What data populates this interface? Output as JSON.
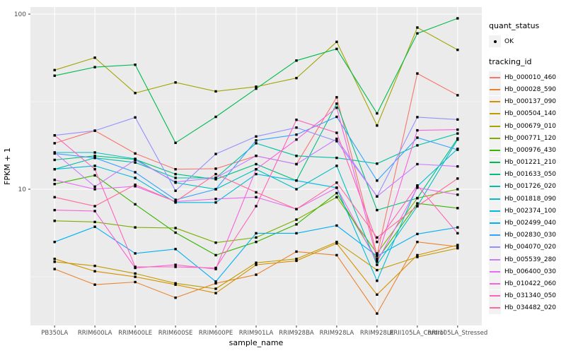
{
  "figure": {
    "background": "#FFFFFF",
    "panel_bg": "#EBEBEB",
    "grid_color": "#FFFFFF",
    "tick_label_color": "#4D4D4D",
    "axis_title_color": "#000000",
    "point_color": "#000000",
    "legend_key_bg": "#F2F2F2"
  },
  "chart_data": {
    "type": "line",
    "title": "",
    "xlabel": "sample_name",
    "ylabel": "FPKM + 1",
    "y_scale": "log10",
    "y_ticks": [
      10,
      100
    ],
    "y_minor_ticks": [
      3.162,
      31.62
    ],
    "ylim": [
      1.67,
      110
    ],
    "grid": true,
    "legend_position": "right",
    "marker": "black-point",
    "categories": [
      "PB350LA",
      "RRIM600LA",
      "RRIM600LE",
      "RRIM600SE",
      "RRIM600PE",
      "RRIM901LA",
      "RRIM928BA",
      "RRIM928LA",
      "RRIM928LE",
      "RRII105LA_Control",
      "RRII105LA_Stressed"
    ],
    "series": [
      {
        "name": "Hb_000010_460",
        "color": "#F8766D",
        "values": [
          18.3,
          21.6,
          16.0,
          13.0,
          13.1,
          15.5,
          13.9,
          33.5,
          4.2,
          45.8,
          34.4
        ]
      },
      {
        "name": "Hb_000028_590",
        "color": "#EA8331",
        "values": [
          3.5,
          2.85,
          2.95,
          2.4,
          2.9,
          3.25,
          4.4,
          4.2,
          1.95,
          5.0,
          4.7
        ]
      },
      {
        "name": "Hb_000137_090",
        "color": "#D89000",
        "values": [
          4.0,
          3.4,
          3.16,
          2.85,
          2.55,
          3.7,
          3.9,
          4.9,
          2.5,
          4.2,
          4.8
        ]
      },
      {
        "name": "Hb_000504_140",
        "color": "#C09B00",
        "values": [
          3.85,
          3.65,
          3.3,
          2.9,
          2.7,
          3.8,
          4.0,
          5.0,
          3.45,
          4.1,
          4.6
        ]
      },
      {
        "name": "Hb_000679_010",
        "color": "#A3A500",
        "values": [
          47.9,
          56.4,
          35.4,
          40.7,
          36.2,
          38.5,
          43.1,
          69.4,
          23.1,
          83.8,
          62.5
        ]
      },
      {
        "name": "Hb_000771_120",
        "color": "#7CAE00",
        "values": [
          6.6,
          6.5,
          6.05,
          6.0,
          4.95,
          5.3,
          6.7,
          9.0,
          4.3,
          8.9,
          10.0
        ]
      },
      {
        "name": "Hb_000976_430",
        "color": "#39B600",
        "values": [
          10.7,
          12.0,
          8.2,
          5.65,
          4.2,
          5.0,
          6.3,
          9.5,
          3.95,
          8.3,
          7.8
        ]
      },
      {
        "name": "Hb_001221_210",
        "color": "#00BB4E",
        "values": [
          44.5,
          49.8,
          51.4,
          18.4,
          25.9,
          37.5,
          54.3,
          63.3,
          27.1,
          77.6,
          94.6
        ]
      },
      {
        "name": "Hb_001633_050",
        "color": "#00BF7D",
        "values": [
          14.7,
          15.5,
          14.8,
          12.2,
          11.4,
          13.9,
          11.2,
          30.8,
          7.6,
          8.9,
          19.5
        ]
      },
      {
        "name": "Hb_001726_020",
        "color": "#00C1A3",
        "values": [
          13.0,
          15.1,
          14.2,
          11.6,
          11.6,
          18.3,
          15.5,
          15.1,
          14.0,
          17.8,
          20.8
        ]
      },
      {
        "name": "Hb_001818_090",
        "color": "#00BFC4",
        "values": [
          16.2,
          16.2,
          14.9,
          10.9,
          10.0,
          13.0,
          10.0,
          13.6,
          3.7,
          8.0,
          19.2
        ]
      },
      {
        "name": "Hb_002374_100",
        "color": "#00BBDC",
        "values": [
          13.0,
          13.6,
          11.6,
          8.4,
          8.4,
          12.2,
          11.2,
          10.2,
          3.0,
          10.4,
          17.0
        ]
      },
      {
        "name": "Hb_002499_040",
        "color": "#00B0F6",
        "values": [
          5.0,
          6.1,
          4.3,
          4.55,
          2.97,
          5.6,
          5.6,
          6.2,
          4.15,
          5.55,
          6.05
        ]
      },
      {
        "name": "Hb_002830_030",
        "color": "#35A2FF",
        "values": [
          16.0,
          15.1,
          12.5,
          8.7,
          10.0,
          19.0,
          20.5,
          25.9,
          11.2,
          19.7,
          16.8
        ]
      },
      {
        "name": "Hb_004070_020",
        "color": "#9590FF",
        "values": [
          20.3,
          21.6,
          25.7,
          9.8,
          15.9,
          20.0,
          22.5,
          18.8,
          9.1,
          25.8,
          25.0
        ]
      },
      {
        "name": "Hb_005539_280",
        "color": "#C77CFF",
        "values": [
          16.2,
          10.35,
          14.7,
          11.0,
          11.6,
          15.5,
          13.9,
          19.4,
          9.1,
          13.9,
          13.5
        ]
      },
      {
        "name": "Hb_006400_030",
        "color": "#E76BF3",
        "values": [
          11.3,
          10.0,
          10.4,
          8.5,
          8.8,
          9.0,
          7.7,
          10.2,
          3.85,
          10.2,
          9.3
        ]
      },
      {
        "name": "Hb_010422_060",
        "color": "#FA62DB",
        "values": [
          7.6,
          7.5,
          3.55,
          3.7,
          3.5,
          13.0,
          19.2,
          29.2,
          4.0,
          21.7,
          21.9
        ]
      },
      {
        "name": "Hb_031340_050",
        "color": "#FF62BC",
        "values": [
          20.3,
          13.0,
          3.6,
          3.6,
          3.55,
          8.0,
          24.9,
          21.0,
          5.0,
          10.5,
          5.6
        ]
      },
      {
        "name": "Hb_034482_020",
        "color": "#FF6A98",
        "values": [
          9.0,
          8.0,
          10.6,
          8.5,
          12.2,
          9.6,
          7.7,
          10.9,
          5.3,
          8.0,
          11.5
        ]
      }
    ],
    "legend": {
      "quant_status": {
        "title": "quant_status",
        "items": [
          {
            "label": "OK",
            "symbol": "point"
          }
        ]
      },
      "tracking_id": {
        "title": "tracking_id"
      }
    }
  }
}
